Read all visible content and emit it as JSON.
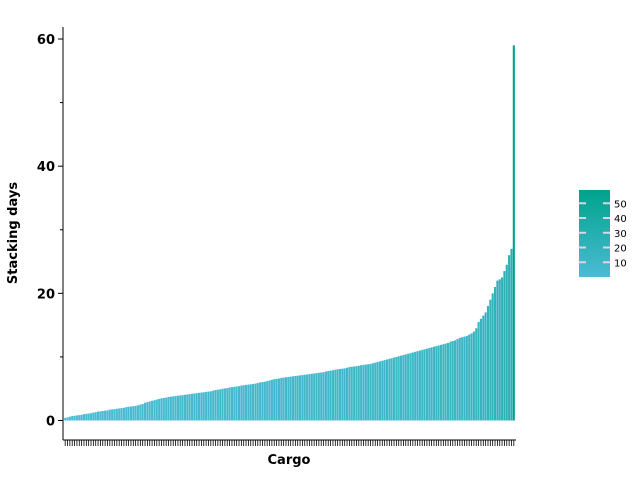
{
  "chart_data": {
    "type": "bar",
    "xlabel": "Cargo",
    "ylabel": "Stacking days",
    "ylim": [
      -3.2,
      62
    ],
    "yticks": [
      0,
      20,
      40,
      60
    ],
    "y_minor_ticks": [
      10,
      30,
      50
    ],
    "x_tick_labels": "none",
    "grid": false,
    "legend": {
      "type": "colorbar",
      "placement": "right",
      "ticks": [
        10,
        20,
        30,
        40,
        50
      ],
      "range": [
        0,
        59
      ],
      "color_low": "#4bbbd4",
      "color_high": "#00a38c"
    },
    "series": [
      {
        "values": [
          0.4,
          0.5,
          0.6,
          0.7,
          0.75,
          0.8,
          0.85,
          0.9,
          1.0,
          1.05,
          1.1,
          1.15,
          1.25,
          1.3,
          1.4,
          1.45,
          1.5,
          1.55,
          1.6,
          1.7,
          1.75,
          1.8,
          1.85,
          1.9,
          1.95,
          2.0,
          2.1,
          2.15,
          2.2,
          2.25,
          2.3,
          2.4,
          2.5,
          2.6,
          2.8,
          2.9,
          3.0,
          3.1,
          3.2,
          3.3,
          3.4,
          3.5,
          3.55,
          3.6,
          3.7,
          3.75,
          3.8,
          3.85,
          3.9,
          3.95,
          4.0,
          4.05,
          4.1,
          4.15,
          4.2,
          4.25,
          4.3,
          4.35,
          4.4,
          4.45,
          4.5,
          4.55,
          4.6,
          4.7,
          4.8,
          4.85,
          4.9,
          5.0,
          5.05,
          5.1,
          5.2,
          5.25,
          5.3,
          5.35,
          5.4,
          5.5,
          5.55,
          5.6,
          5.65,
          5.7,
          5.75,
          5.8,
          5.9,
          6.0,
          6.05,
          6.1,
          6.2,
          6.3,
          6.4,
          6.5,
          6.55,
          6.6,
          6.7,
          6.75,
          6.8,
          6.85,
          6.9,
          6.95,
          7.0,
          7.05,
          7.1,
          7.15,
          7.2,
          7.25,
          7.3,
          7.35,
          7.4,
          7.45,
          7.5,
          7.55,
          7.6,
          7.7,
          7.8,
          7.85,
          7.9,
          8.0,
          8.05,
          8.1,
          8.15,
          8.2,
          8.3,
          8.4,
          8.45,
          8.5,
          8.55,
          8.6,
          8.7,
          8.75,
          8.8,
          8.85,
          8.9,
          9.0,
          9.1,
          9.2,
          9.3,
          9.4,
          9.5,
          9.6,
          9.7,
          9.8,
          9.9,
          10.0,
          10.1,
          10.2,
          10.3,
          10.4,
          10.5,
          10.6,
          10.7,
          10.8,
          10.9,
          11.0,
          11.1,
          11.2,
          11.3,
          11.4,
          11.5,
          11.6,
          11.7,
          11.8,
          11.9,
          12.0,
          12.1,
          12.2,
          12.4,
          12.5,
          12.6,
          12.8,
          13.0,
          13.1,
          13.2,
          13.3,
          13.5,
          13.7,
          14.0,
          14.5,
          15.5,
          16.0,
          16.5,
          17.0,
          18.0,
          19.0,
          20.0,
          21.0,
          22.0,
          22.2,
          22.5,
          23.5,
          24.5,
          26.0,
          27.0,
          59.0
        ]
      }
    ]
  }
}
